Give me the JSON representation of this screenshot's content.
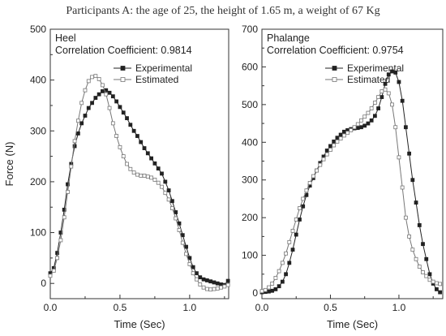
{
  "title": "Participants A: the age of 25, the height of 1.65 m, a weight of 67 Kg",
  "chart_data": [
    {
      "type": "line",
      "panel_title": "Heel",
      "annotation": "Correlation Coefficient: 0.9814",
      "xlabel": "Time (Sec)",
      "ylabel": "Force (N)",
      "xlim": [
        0,
        1.28
      ],
      "ylim": [
        -30,
        500
      ],
      "xticks": [
        0.0,
        0.5,
        1.0
      ],
      "yticks": [
        0,
        100,
        200,
        300,
        400,
        500
      ],
      "xtick_labels": [
        "0.0",
        "0.5",
        "1.0"
      ],
      "ytick_labels": [
        "0",
        "100",
        "200",
        "300",
        "400",
        "500"
      ],
      "legend": "top-right",
      "series": [
        {
          "name": "Experimental",
          "marker": "filled-square",
          "x": [
            0.0,
            0.025,
            0.05,
            0.075,
            0.1,
            0.125,
            0.15,
            0.175,
            0.2,
            0.225,
            0.25,
            0.275,
            0.3,
            0.325,
            0.35,
            0.375,
            0.4,
            0.425,
            0.45,
            0.475,
            0.5,
            0.525,
            0.55,
            0.575,
            0.6,
            0.625,
            0.65,
            0.675,
            0.7,
            0.725,
            0.75,
            0.775,
            0.8,
            0.825,
            0.85,
            0.875,
            0.9,
            0.925,
            0.95,
            0.975,
            1.0,
            1.025,
            1.05,
            1.075,
            1.1,
            1.125,
            1.15,
            1.175,
            1.2,
            1.225,
            1.25,
            1.275
          ],
          "y": [
            20,
            30,
            60,
            100,
            145,
            195,
            235,
            270,
            295,
            315,
            330,
            345,
            355,
            365,
            372,
            378,
            380,
            375,
            368,
            358,
            347,
            336,
            325,
            312,
            300,
            290,
            278,
            266,
            256,
            246,
            236,
            226,
            216,
            200,
            183,
            162,
            140,
            118,
            95,
            72,
            50,
            32,
            20,
            12,
            8,
            6,
            4,
            2,
            0,
            -2,
            -3,
            5
          ]
        },
        {
          "name": "Estimated",
          "marker": "open-square",
          "x": [
            0.0,
            0.025,
            0.05,
            0.075,
            0.1,
            0.125,
            0.15,
            0.175,
            0.2,
            0.225,
            0.25,
            0.275,
            0.3,
            0.325,
            0.35,
            0.375,
            0.4,
            0.425,
            0.45,
            0.475,
            0.5,
            0.525,
            0.55,
            0.575,
            0.6,
            0.625,
            0.65,
            0.675,
            0.7,
            0.725,
            0.75,
            0.775,
            0.8,
            0.825,
            0.85,
            0.875,
            0.9,
            0.925,
            0.95,
            0.975,
            1.0,
            1.025,
            1.05,
            1.075,
            1.1,
            1.125,
            1.15,
            1.175,
            1.2,
            1.225,
            1.25,
            1.275
          ],
          "y": [
            15,
            25,
            50,
            85,
            130,
            180,
            230,
            280,
            320,
            355,
            380,
            398,
            406,
            408,
            402,
            390,
            372,
            345,
            315,
            290,
            268,
            250,
            235,
            225,
            218,
            214,
            212,
            212,
            210,
            208,
            204,
            198,
            190,
            178,
            165,
            148,
            128,
            105,
            80,
            58,
            38,
            20,
            8,
            -2,
            -8,
            -11,
            -12,
            -11,
            -10,
            -8,
            -6,
            -3
          ]
        }
      ]
    },
    {
      "type": "line",
      "panel_title": "Phalange",
      "annotation": "Correlation Coefficient: 0.9754",
      "xlabel": "Time (Sec)",
      "ylabel": "",
      "xlim": [
        0,
        1.32
      ],
      "ylim": [
        -15,
        700
      ],
      "xticks": [
        0.0,
        0.5,
        1.0
      ],
      "yticks": [
        0,
        100,
        200,
        300,
        400,
        500,
        600,
        700
      ],
      "xtick_labels": [
        "0.0",
        "0.5",
        "1.0"
      ],
      "ytick_labels": [
        "0",
        "100",
        "200",
        "300",
        "400",
        "500",
        "600",
        "700"
      ],
      "legend": "top-right",
      "series": [
        {
          "name": "Experimental",
          "marker": "filled-square",
          "x": [
            0.0,
            0.025,
            0.05,
            0.075,
            0.1,
            0.125,
            0.15,
            0.175,
            0.2,
            0.225,
            0.25,
            0.275,
            0.3,
            0.325,
            0.35,
            0.375,
            0.4,
            0.425,
            0.45,
            0.475,
            0.5,
            0.525,
            0.55,
            0.575,
            0.6,
            0.625,
            0.65,
            0.675,
            0.7,
            0.725,
            0.75,
            0.775,
            0.8,
            0.825,
            0.85,
            0.875,
            0.9,
            0.925,
            0.95,
            0.975,
            1.0,
            1.025,
            1.05,
            1.075,
            1.1,
            1.125,
            1.15,
            1.175,
            1.2,
            1.225,
            1.25,
            1.275,
            1.3
          ],
          "y": [
            2,
            3,
            4,
            6,
            10,
            18,
            30,
            50,
            80,
            115,
            155,
            195,
            230,
            260,
            285,
            305,
            325,
            345,
            362,
            378,
            390,
            402,
            412,
            420,
            428,
            432,
            435,
            437,
            438,
            440,
            444,
            450,
            458,
            470,
            490,
            520,
            555,
            580,
            588,
            585,
            560,
            510,
            440,
            370,
            300,
            240,
            180,
            130,
            90,
            50,
            25,
            10,
            2
          ]
        },
        {
          "name": "Estimated",
          "marker": "open-square",
          "x": [
            0.0,
            0.025,
            0.05,
            0.075,
            0.1,
            0.125,
            0.15,
            0.175,
            0.2,
            0.225,
            0.25,
            0.275,
            0.3,
            0.325,
            0.35,
            0.375,
            0.4,
            0.425,
            0.45,
            0.475,
            0.5,
            0.525,
            0.55,
            0.575,
            0.6,
            0.625,
            0.65,
            0.675,
            0.7,
            0.725,
            0.75,
            0.775,
            0.8,
            0.825,
            0.85,
            0.875,
            0.9,
            0.925,
            0.95,
            0.975,
            1.0,
            1.025,
            1.05,
            1.075,
            1.1,
            1.125,
            1.15,
            1.175,
            1.2,
            1.225,
            1.25,
            1.275,
            1.3
          ],
          "y": [
            5,
            8,
            15,
            25,
            40,
            58,
            80,
            105,
            135,
            165,
            195,
            225,
            250,
            272,
            292,
            310,
            325,
            340,
            355,
            368,
            380,
            392,
            402,
            410,
            418,
            425,
            432,
            440,
            448,
            458,
            468,
            478,
            490,
            505,
            520,
            535,
            540,
            530,
            500,
            440,
            360,
            280,
            200,
            150,
            115,
            90,
            70,
            55,
            45,
            35,
            30,
            26,
            24
          ]
        }
      ]
    }
  ]
}
